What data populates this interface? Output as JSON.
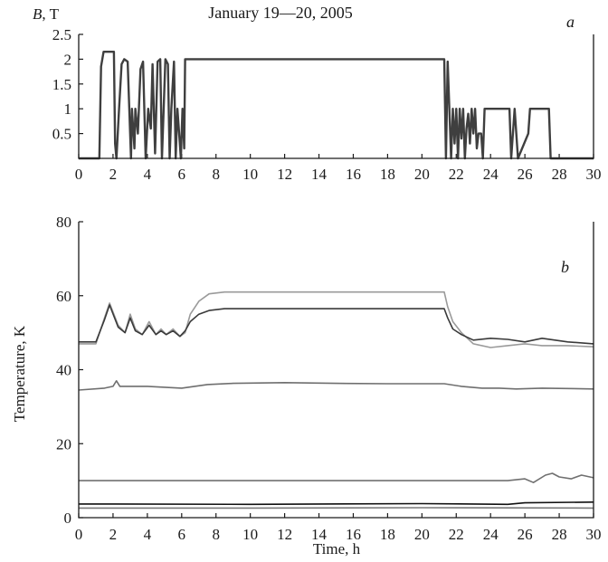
{
  "figure_title": "January 19—20, 2005",
  "chart_data": [
    {
      "type": "line",
      "panel_label": "a",
      "ylabel_var": "B",
      "ylabel_unit": ", T",
      "xlim": [
        0,
        30
      ],
      "ylim": [
        0,
        2.5
      ],
      "x_ticks": [
        0,
        2,
        4,
        6,
        8,
        10,
        12,
        14,
        16,
        18,
        20,
        22,
        24,
        26,
        28,
        30
      ],
      "y_ticks": [
        0.5,
        1,
        1.5,
        2,
        2.5
      ],
      "x_tick_labels": [
        "0",
        "2",
        "4",
        "6",
        "8",
        "10",
        "12",
        "14",
        "16",
        "18",
        "20",
        "22",
        "24",
        "26",
        "28",
        "30"
      ],
      "y_tick_labels": [
        "0.5",
        "1",
        "1.5",
        "2",
        "2.5"
      ],
      "grid": false,
      "color": "#3f3f3f",
      "series": [
        {
          "x": [
            0,
            1.2,
            1.3,
            1.45,
            2.05,
            2.12,
            2.2,
            2.35,
            2.5,
            2.65,
            2.85,
            3.05,
            3.1,
            3.25,
            3.3,
            3.45,
            3.6,
            3.75,
            3.9,
            4.05,
            4.2,
            4.3,
            4.45,
            4.6,
            4.75,
            4.85,
            4.95,
            5.05,
            5.2,
            5.3,
            5.4,
            5.55,
            5.65,
            5.75,
            5.85,
            5.95,
            6.05,
            6.15,
            6.2,
            6.3,
            21.3,
            21.4,
            21.5,
            21.7,
            21.8,
            21.9,
            22.0,
            22.1,
            22.2,
            22.3,
            22.4,
            22.5,
            22.6,
            22.7,
            22.8,
            22.9,
            23.0,
            23.1,
            23.2,
            23.3,
            23.45,
            23.55,
            23.65,
            23.75,
            25.1,
            25.2,
            25.3,
            25.4,
            25.6,
            26.2,
            26.3,
            27.4,
            27.5,
            30
          ],
          "values": [
            0,
            0,
            1.85,
            2.15,
            2.15,
            0.3,
            0,
            1.0,
            1.9,
            2.0,
            1.95,
            0,
            1.0,
            0.2,
            1.0,
            0.5,
            1.8,
            1.95,
            0,
            1.0,
            0.6,
            1.9,
            0.1,
            1.95,
            2.0,
            0,
            1.0,
            2.0,
            1.9,
            0,
            1.0,
            1.95,
            0,
            1.0,
            0.5,
            0,
            1.0,
            0.2,
            2.0,
            2.0,
            2.0,
            0,
            1.95,
            0,
            1.0,
            0.3,
            1.0,
            0,
            1.0,
            0.4,
            1.0,
            0,
            0.6,
            0.9,
            0.3,
            1.0,
            0.5,
            1.0,
            0.2,
            0.5,
            0.5,
            0,
            1.0,
            1.0,
            1.0,
            0,
            0.5,
            1.0,
            0,
            0.5,
            1.0,
            1.0,
            0,
            0
          ]
        }
      ]
    },
    {
      "type": "line",
      "panel_label": "b",
      "xlabel": "Time, h",
      "ylabel": "Temperature, K",
      "xlim": [
        0,
        30
      ],
      "ylim": [
        0,
        80
      ],
      "x_ticks": [
        0,
        2,
        4,
        6,
        8,
        10,
        12,
        14,
        16,
        18,
        20,
        22,
        24,
        26,
        28,
        30
      ],
      "y_ticks": [
        0,
        20,
        40,
        60,
        80
      ],
      "x_tick_labels": [
        "0",
        "2",
        "4",
        "6",
        "8",
        "10",
        "12",
        "14",
        "16",
        "18",
        "20",
        "22",
        "24",
        "26",
        "28",
        "30"
      ],
      "y_tick_labels": [
        "0",
        "20",
        "40",
        "60",
        "80"
      ],
      "grid": false,
      "series": [
        {
          "color": "#9a9a9a",
          "x": [
            0,
            1.0,
            1.5,
            1.8,
            2.3,
            2.7,
            3.0,
            3.3,
            3.7,
            4.1,
            4.5,
            4.8,
            5.1,
            5.5,
            5.9,
            6.2,
            6.5,
            7.0,
            7.6,
            8.5,
            10,
            14,
            18,
            21.3,
            21.5,
            21.8,
            22.3,
            23.0,
            24.0,
            25.0,
            26.0,
            27.0,
            28.5,
            30
          ],
          "values": [
            47,
            47,
            54,
            58,
            52,
            50,
            55,
            51,
            49.5,
            53,
            49.5,
            51,
            49.5,
            51,
            49,
            50,
            55,
            58.5,
            60.5,
            61,
            61,
            61,
            61,
            61,
            57,
            53,
            50,
            47,
            46,
            46.5,
            47,
            46.5,
            46.5,
            46.2
          ]
        },
        {
          "color": "#3a3a3a",
          "x": [
            0,
            1.0,
            1.5,
            1.8,
            2.3,
            2.7,
            3.0,
            3.3,
            3.7,
            4.1,
            4.5,
            4.8,
            5.1,
            5.5,
            5.9,
            6.2,
            6.5,
            7.0,
            7.6,
            8.5,
            10,
            14,
            18,
            21.3,
            21.5,
            21.8,
            22.3,
            23.0,
            24.0,
            25.0,
            26.0,
            27.0,
            28.5,
            30
          ],
          "values": [
            47.5,
            47.5,
            53.5,
            57.5,
            51.5,
            50,
            54,
            50.5,
            49.5,
            52,
            49.5,
            50.5,
            49.5,
            50.5,
            49,
            50.5,
            53,
            55,
            56,
            56.5,
            56.5,
            56.5,
            56.5,
            56.5,
            54,
            51,
            49.5,
            48,
            48.5,
            48.2,
            47.5,
            48.5,
            47.5,
            47
          ]
        },
        {
          "color": "#6f6f6f",
          "x": [
            0,
            1.5,
            2.0,
            2.2,
            2.4,
            4,
            6,
            7.5,
            9,
            12,
            15,
            18,
            21.3,
            22.3,
            23.5,
            24.5,
            25.5,
            27,
            30
          ],
          "values": [
            34.5,
            35,
            35.5,
            37,
            35.5,
            35.5,
            35,
            36,
            36.3,
            36.5,
            36.3,
            36.2,
            36.2,
            35.5,
            35,
            35,
            34.8,
            35,
            34.8
          ]
        },
        {
          "color": "#707070",
          "x": [
            0,
            5,
            10,
            15,
            20,
            25,
            26,
            26.5,
            27.2,
            27.6,
            28,
            28.7,
            29.3,
            30
          ],
          "values": [
            10,
            10,
            10,
            10,
            10,
            10,
            10.5,
            9.5,
            11.5,
            12,
            11,
            10.5,
            11.5,
            10.8
          ]
        },
        {
          "color": "#111111",
          "x": [
            0,
            10,
            20,
            25,
            26,
            30
          ],
          "values": [
            3.7,
            3.6,
            3.8,
            3.6,
            4.0,
            4.2
          ]
        },
        {
          "color": "#7a7a7a",
          "x": [
            0,
            10,
            20,
            30
          ],
          "values": [
            2.6,
            2.6,
            2.7,
            2.6
          ]
        }
      ]
    }
  ]
}
